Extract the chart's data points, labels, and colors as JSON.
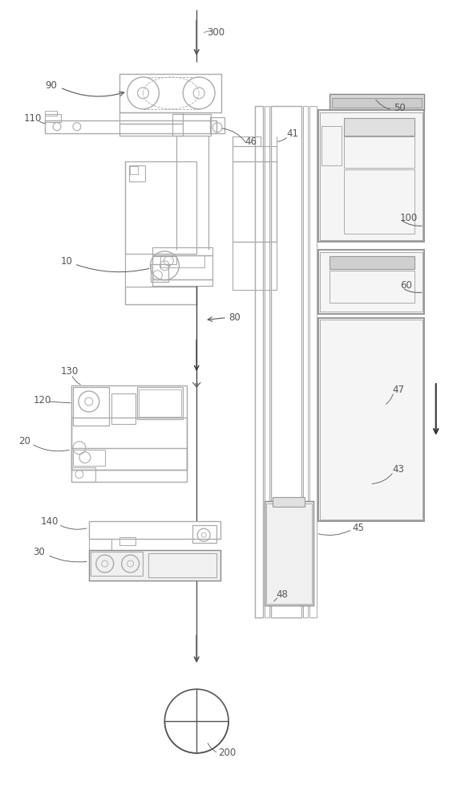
{
  "bg_color": "#ffffff",
  "lc": "#aaaaaa",
  "dc": "#555555",
  "lc2": "#bbbbbb",
  "fs": 8.5,
  "figsize": [
    5.7,
    10.0
  ],
  "dpi": 100
}
